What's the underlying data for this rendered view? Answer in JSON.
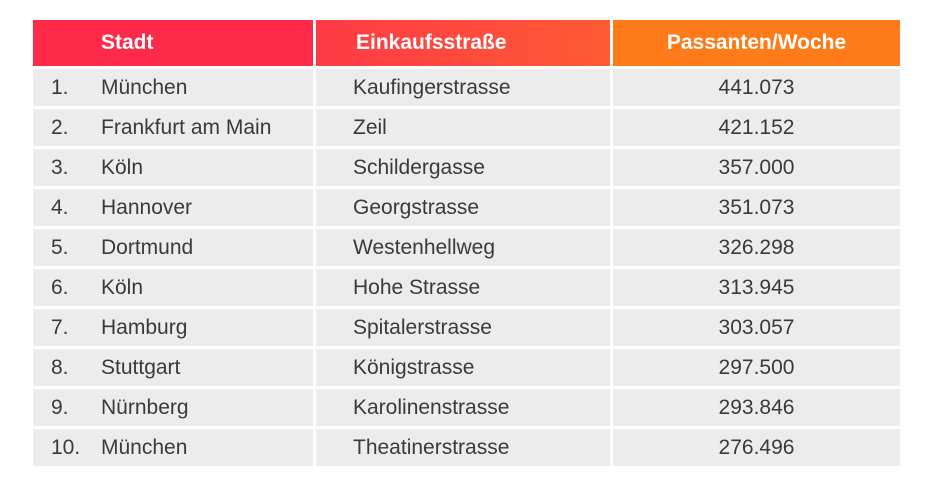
{
  "table": {
    "headers": {
      "city": "Stadt",
      "street": "Einkaufsstraße",
      "passersby": "Passanten/Woche"
    },
    "rows": [
      {
        "rank": "1.",
        "city": "München",
        "street": "Kaufingerstrasse",
        "passersby": "441.073"
      },
      {
        "rank": "2.",
        "city": "Frankfurt am Main",
        "street": "Zeil",
        "passersby": "421.152"
      },
      {
        "rank": "3.",
        "city": "Köln",
        "street": "Schildergasse",
        "passersby": "357.000"
      },
      {
        "rank": "4.",
        "city": "Hannover",
        "street": "Georgstrasse",
        "passersby": "351.073"
      },
      {
        "rank": "5.",
        "city": "Dortmund",
        "street": "Westenhellweg",
        "passersby": "326.298"
      },
      {
        "rank": "6.",
        "city": "Köln",
        "street": "Hohe Strasse",
        "passersby": "313.945"
      },
      {
        "rank": "7.",
        "city": "Hamburg",
        "street": "Spitalerstrasse",
        "passersby": "303.057"
      },
      {
        "rank": "8.",
        "city": "Stuttgart",
        "street": "Königstrasse",
        "passersby": "297.500"
      },
      {
        "rank": "9.",
        "city": "Nürnberg",
        "street": "Karolinenstrasse",
        "passersby": "293.846"
      },
      {
        "rank": "10.",
        "city": "München",
        "street": "Theatinerstrasse",
        "passersby": "276.496"
      }
    ]
  },
  "colors": {
    "header_red": "#ff2a4a",
    "header_orange": "#ff7a18",
    "row_bg": "#ececec",
    "text": "#3a3a3a"
  }
}
